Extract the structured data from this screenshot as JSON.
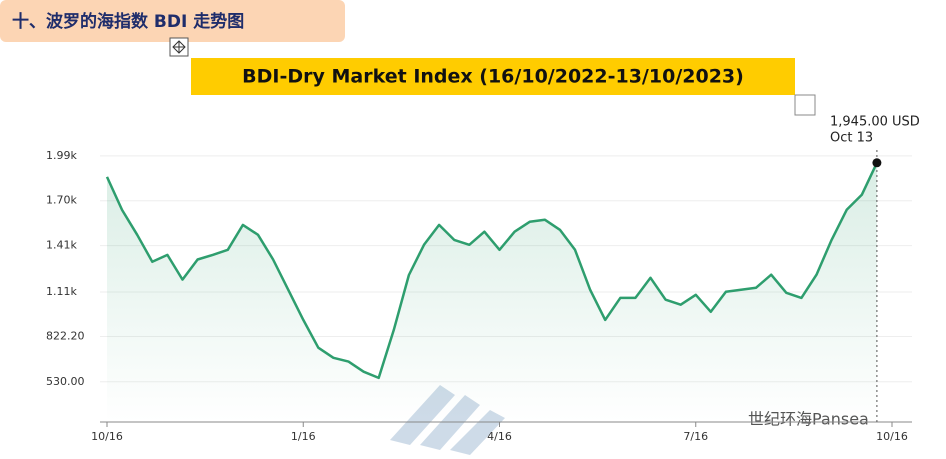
{
  "header": {
    "title": "十、波罗的海指数 BDI 走势图"
  },
  "chart_data": {
    "type": "line",
    "title": "BDI-Dry Market Index (16/10/2022-13/10/2023)",
    "categories": [
      "10/16",
      null,
      null,
      null,
      null,
      null,
      null,
      null,
      null,
      null,
      null,
      null,
      null,
      "1/16",
      null,
      null,
      null,
      null,
      null,
      null,
      null,
      null,
      null,
      null,
      null,
      null,
      "4/16",
      null,
      null,
      null,
      null,
      null,
      null,
      null,
      null,
      null,
      null,
      null,
      null,
      "7/16",
      null,
      null,
      null,
      null,
      null,
      null,
      null,
      null,
      null,
      null,
      null,
      null,
      "10/16"
    ],
    "series": [
      {
        "name": "BDI",
        "color": "#2e9e6e",
        "values": [
          1854,
          1640,
          1480,
          1305,
          1350,
          1190,
          1320,
          1350,
          1383,
          1544,
          1480,
          1320,
          1125,
          930,
          750,
          685,
          660,
          595,
          555,
          865,
          1220,
          1415,
          1544,
          1447,
          1415,
          1500,
          1383,
          1500,
          1564,
          1577,
          1512,
          1383,
          1125,
          930,
          1072,
          1072,
          1202,
          1060,
          1028,
          1092,
          982,
          1112,
          1125,
          1138,
          1222,
          1105,
          1072,
          1222,
          1447,
          1641,
          1738,
          1945,
          null
        ]
      }
    ],
    "ylim": [
      270,
      2060
    ],
    "yticks": [
      {
        "value": 530,
        "label": "530.00"
      },
      {
        "value": 822.2,
        "label": "822.20"
      },
      {
        "value": 1110,
        "label": "1.11k"
      },
      {
        "value": 1410,
        "label": "1.41k"
      },
      {
        "value": 1700,
        "label": "1.70k"
      },
      {
        "value": 1990,
        "label": "1.99k"
      }
    ],
    "grid": true,
    "annotation": {
      "value_label": "1,945.00 USD",
      "date": "Oct 13"
    },
    "watermark": "世纪环海Pansea"
  }
}
